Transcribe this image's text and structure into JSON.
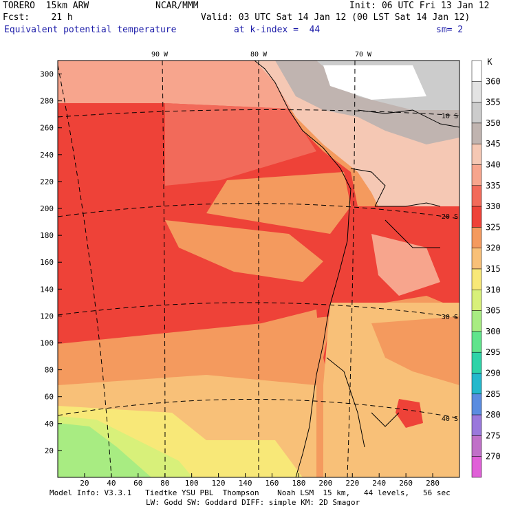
{
  "header": {
    "model": "TORERO  15km ARW",
    "org": "NCAR/MMM",
    "init": "Init: 06 UTC Fri 13 Jan 12",
    "fcst": "Fcst:    21 h",
    "valid": "Valid: 03 UTC Sat 14 Jan 12 (00 LST Sat 14 Jan 12)",
    "field": "Equivalent potential temperature",
    "kindex": "at k-index =  44",
    "sm": "sm= 2"
  },
  "footer": {
    "line1": "Model Info: V3.3.1   Tiedtke YSU PBL  Thompson    Noah LSM  15 km,   44 levels,   56 sec",
    "line2": "LW: Godd SW: Goddard DIFF: simple KM: 2D Smagor"
  },
  "map": {
    "lon_labels": [
      "90 W",
      "80 W",
      "70 W"
    ],
    "lat_labels": [
      "10 S",
      "20 S",
      "30 S",
      "40 S"
    ],
    "x_ticks": [
      "20",
      "40",
      "60",
      "80",
      "100",
      "120",
      "140",
      "160",
      "180",
      "200",
      "220",
      "240",
      "260",
      "280"
    ],
    "y_ticks": [
      "300",
      "280",
      "260",
      "240",
      "220",
      "200",
      "180",
      "160",
      "140",
      "120",
      "100",
      "80",
      "60",
      "40",
      "20"
    ]
  },
  "colorbar": {
    "unit": "K",
    "levels": [
      "360",
      "355",
      "350",
      "345",
      "340",
      "335",
      "330",
      "325",
      "320",
      "315",
      "310",
      "305",
      "300",
      "295",
      "290",
      "285",
      "280",
      "275",
      "270"
    ],
    "colors": [
      "#ffffff",
      "#e3e3e3",
      "#cccccc",
      "#c0b4b0",
      "#f5c8b4",
      "#f7a58d",
      "#f26a5a",
      "#ee4238",
      "#f49a5e",
      "#f8c078",
      "#f8e878",
      "#d8f07a",
      "#a8ec82",
      "#60e48c",
      "#2ed3a8",
      "#24b8cc",
      "#5a8ce0",
      "#9a78dc",
      "#c070c8",
      "#e060d8"
    ]
  }
}
